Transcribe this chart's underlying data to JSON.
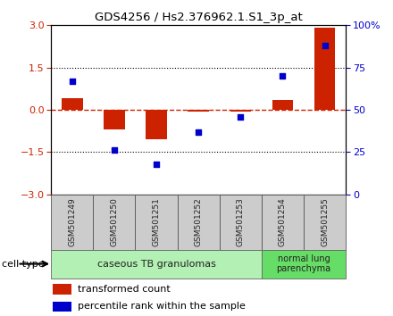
{
  "title": "GDS4256 / Hs2.376962.1.S1_3p_at",
  "samples": [
    "GSM501249",
    "GSM501250",
    "GSM501251",
    "GSM501252",
    "GSM501253",
    "GSM501254",
    "GSM501255"
  ],
  "transformed_count": [
    0.4,
    -0.7,
    -1.05,
    -0.07,
    -0.07,
    0.35,
    2.9
  ],
  "percentile_rank": [
    67,
    26,
    18,
    37,
    46,
    70,
    88
  ],
  "ylim_left": [
    -3,
    3
  ],
  "ylim_right": [
    0,
    100
  ],
  "yticks_left": [
    -3,
    -1.5,
    0,
    1.5,
    3
  ],
  "yticks_right": [
    0,
    25,
    50,
    75,
    100
  ],
  "ytick_labels_right": [
    "0",
    "25",
    "50",
    "75",
    "100%"
  ],
  "bar_color": "#cc2200",
  "dot_color": "#0000cc",
  "group1_label": "caseous TB granulomas",
  "group2_label": "normal lung\nparenchyma",
  "cell_type_label": "cell type",
  "legend_bar_label": "transformed count",
  "legend_dot_label": "percentile rank within the sample",
  "bg_color_plot": "#ffffff",
  "bg_color_xtick": "#cccccc",
  "bg_color_group1": "#b3f0b3",
  "bg_color_group2": "#66dd66",
  "bar_width": 0.5
}
